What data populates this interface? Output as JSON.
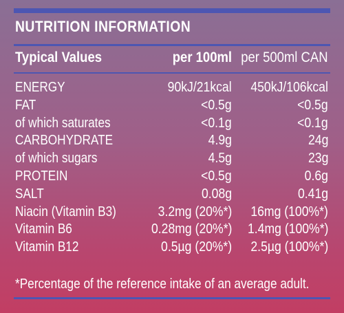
{
  "title": "NUTRITION INFORMATION",
  "header": {
    "col0": "Typical Values",
    "col1": "per 100ml",
    "col2": "per 500ml CAN"
  },
  "rows": [
    {
      "name": "ENERGY",
      "per100": "90kJ/21kcal",
      "perCan": "450kJ/106kcal"
    },
    {
      "name": "FAT",
      "per100": "<0.5g",
      "perCan": "<0.5g"
    },
    {
      "name": "of which saturates",
      "per100": "<0.1g",
      "perCan": "<0.1g"
    },
    {
      "name": "CARBOHYDRATE",
      "per100": "4.9g",
      "perCan": "24g"
    },
    {
      "name": "of which sugars",
      "per100": "4.5g",
      "perCan": "23g"
    },
    {
      "name": "PROTEIN",
      "per100": "<0.5g",
      "perCan": "0.6g"
    },
    {
      "name": "SALT",
      "per100": "0.08g",
      "perCan": "0.41g"
    },
    {
      "name": "Niacin (Vitamin B3)",
      "per100": "3.2mg (20%*)",
      "perCan": "16mg (100%*)"
    },
    {
      "name": "Vitamin B6",
      "per100": "0.28mg (20%*)",
      "perCan": "1.4mg (100%*)"
    },
    {
      "name": "Vitamin B12",
      "per100": "0.5µg (20%*)",
      "perCan": "2.5µg (100%*)"
    }
  ],
  "footnote": "*Percentage of the reference intake of an average adult.",
  "colors": {
    "rule": "#4d56b2",
    "text": "#ffffff"
  }
}
